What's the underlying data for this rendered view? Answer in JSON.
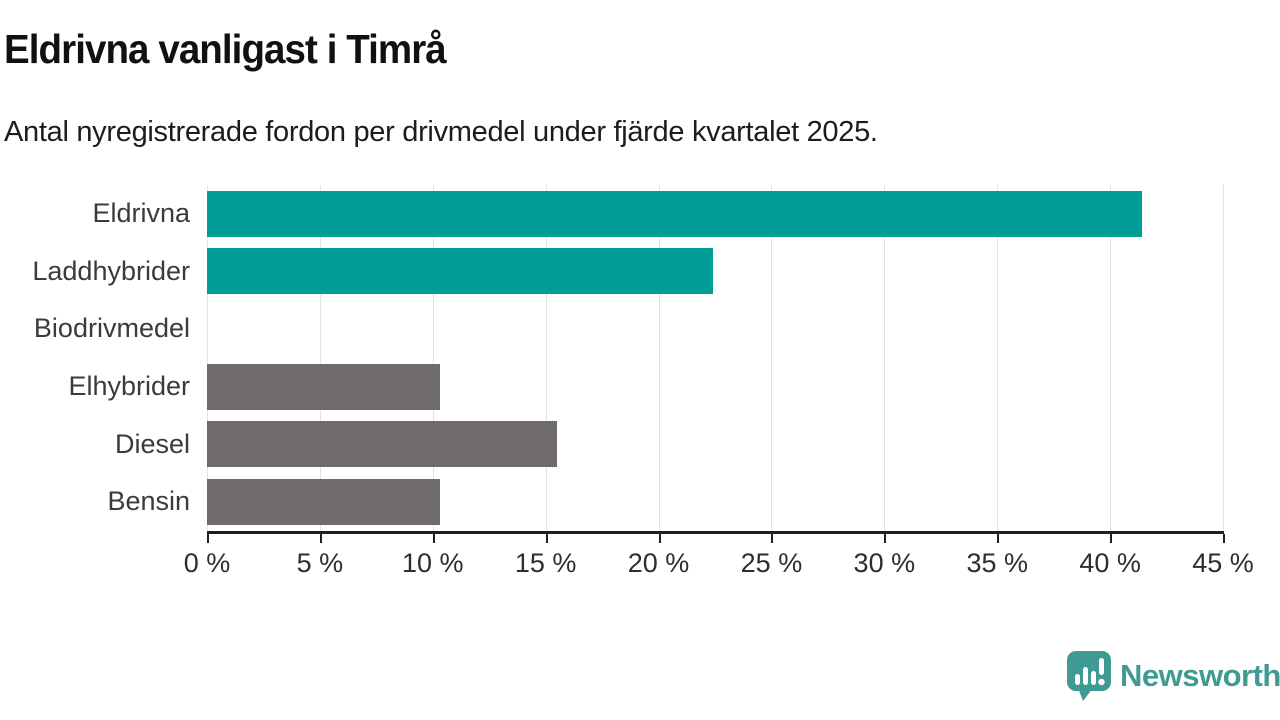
{
  "header": {
    "title": "Eldrivna vanligast i Timrå",
    "subtitle": "Antal nyregistrerade fordon per drivmedel under fjärde kvartalet 2025."
  },
  "branding": {
    "logo_text": "Newsworthy",
    "logo_icon": "speech-bubble-bar-chart-exclamation",
    "logo_color": "#3f9a93"
  },
  "colors": {
    "highlight_bar": "#009e96",
    "default_bar": "#6e6a6e",
    "gridline": "#e3e3e3",
    "axis": "#1f1f1f",
    "title_text": "#111111",
    "label_text": "#3b3b3b"
  },
  "chart_data": {
    "type": "bar",
    "orientation": "horizontal",
    "title": "Eldrivna vanligast i Timrå",
    "subtitle": "Antal nyregistrerade fordon per drivmedel under fjärde kvartalet 2025.",
    "categories": [
      "Eldrivna",
      "Laddhybrider",
      "Biodrivmedel",
      "Elhybrider",
      "Diesel",
      "Bensin"
    ],
    "values": [
      41.4,
      22.4,
      0,
      10.3,
      15.5,
      10.3
    ],
    "bar_colors": [
      "#009e96",
      "#009e96",
      "#6e6a6e",
      "#6e6a6e",
      "#6e6a6e",
      "#6e6a6e"
    ],
    "xlabel": "",
    "ylabel": "",
    "xlim": [
      0,
      45
    ],
    "x_ticks": [
      0,
      5,
      10,
      15,
      20,
      25,
      30,
      35,
      40,
      45
    ],
    "x_tick_labels": [
      "0 %",
      "5 %",
      "10 %",
      "15 %",
      "20 %",
      "25 %",
      "30 %",
      "35 %",
      "40 %",
      "45 %"
    ],
    "grid": true,
    "legend": false,
    "data_labels": false
  }
}
